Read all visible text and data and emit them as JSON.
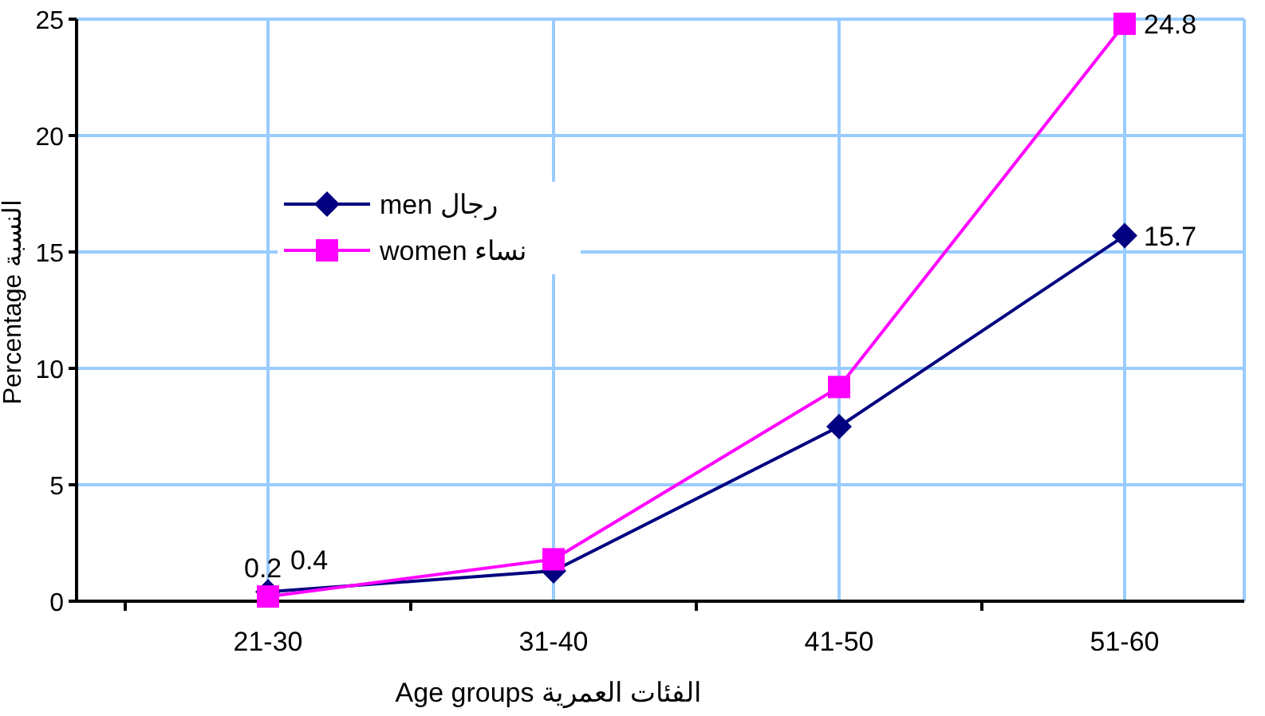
{
  "chart_data": {
    "type": "line",
    "xlabel": "Age groups  الفئات العمرية",
    "ylabel": "Percentage  النسبة",
    "categories": [
      "21-30",
      "31-40",
      "41-50",
      "51-60"
    ],
    "series": [
      {
        "name": "men  رجال",
        "color": "#000080",
        "marker": "diamond",
        "values": [
          0.4,
          1.3,
          7.5,
          15.7
        ],
        "value_labels": [
          "0.4",
          null,
          null,
          "15.7"
        ]
      },
      {
        "name": "women  نساء",
        "color": "#ff00ff",
        "marker": "square",
        "values": [
          0.2,
          1.8,
          9.2,
          24.8
        ],
        "value_labels": [
          "0.2",
          null,
          null,
          "24.8"
        ]
      }
    ],
    "ylim": [
      0,
      25
    ],
    "yticks": [
      0,
      5,
      10,
      15,
      20,
      25
    ],
    "grid": true,
    "legend": "left"
  }
}
